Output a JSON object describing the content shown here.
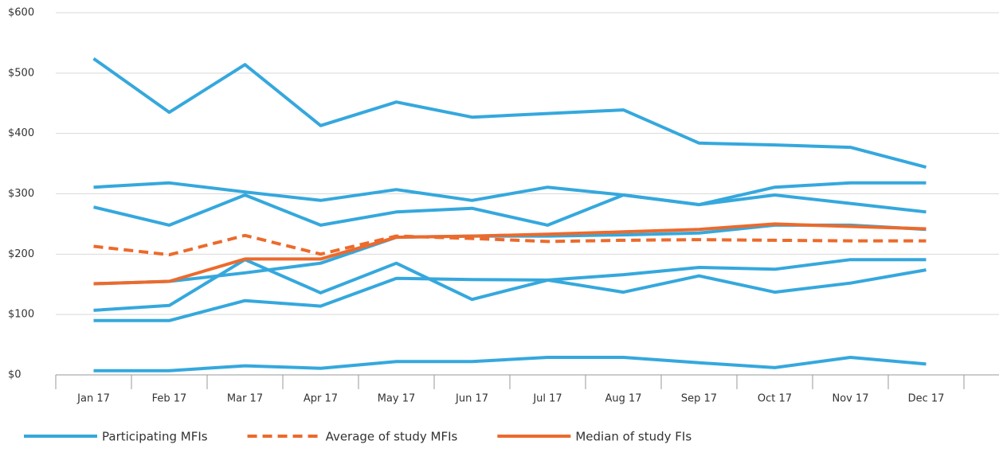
{
  "chart_data": {
    "type": "line",
    "categories": [
      "Jan 17",
      "Feb 17",
      "Mar 17",
      "Apr 17",
      "May 17",
      "Jun 17",
      "Jul 17",
      "Aug 17",
      "Sep 17",
      "Oct 17",
      "Nov 17",
      "Dec 17"
    ],
    "ylim": [
      0,
      600
    ],
    "yticks": [
      {
        "value": 0,
        "label": "$0"
      },
      {
        "value": 100,
        "label": "$100"
      },
      {
        "value": 200,
        "label": "$200"
      },
      {
        "value": 300,
        "label": "$300"
      },
      {
        "value": 400,
        "label": "$400"
      },
      {
        "value": 500,
        "label": "$500"
      },
      {
        "value": 600,
        "label": "$600"
      }
    ],
    "grid": true,
    "legend": "bottom",
    "series": [
      {
        "name": "Participating MFIs",
        "color": "#35a8dd",
        "style": "solid",
        "values": [
          524,
          435,
          514,
          413,
          452,
          427,
          433,
          439,
          384,
          381,
          377,
          344
        ]
      },
      {
        "name": "Participating MFIs",
        "color": "#35a8dd",
        "style": "solid",
        "values": [
          311,
          318,
          303,
          289,
          307,
          289,
          311,
          298,
          282,
          311,
          318,
          318
        ]
      },
      {
        "name": "Participating MFIs",
        "color": "#35a8dd",
        "style": "solid",
        "values": [
          278,
          248,
          298,
          248,
          270,
          276,
          248,
          298,
          282,
          298,
          284,
          270
        ]
      },
      {
        "name": "Participating MFIs",
        "color": "#35a8dd",
        "style": "solid",
        "values": [
          151,
          155,
          169,
          185,
          228,
          230,
          230,
          232,
          235,
          248,
          248,
          241
        ]
      },
      {
        "name": "Participating MFIs",
        "color": "#35a8dd",
        "style": "solid",
        "values": [
          107,
          115,
          191,
          136,
          185,
          125,
          157,
          137,
          164,
          137,
          152,
          174
        ]
      },
      {
        "name": "Participating MFIs",
        "color": "#35a8dd",
        "style": "solid",
        "values": [
          90,
          90,
          123,
          114,
          160,
          158,
          157,
          166,
          178,
          175,
          191,
          191
        ]
      },
      {
        "name": "Participating MFIs",
        "color": "#35a8dd",
        "style": "solid",
        "values": [
          7,
          7,
          15,
          11,
          22,
          22,
          29,
          29,
          20,
          12,
          29,
          18
        ]
      },
      {
        "name": "Average of study MFIs",
        "color": "#ec6a2c",
        "style": "dashed",
        "values": [
          213,
          199,
          231,
          200,
          230,
          226,
          221,
          223,
          224,
          223,
          222,
          222
        ]
      },
      {
        "name": "Median of study FIs",
        "color": "#ec6a2c",
        "style": "solid",
        "values": [
          151,
          155,
          192,
          192,
          228,
          230,
          233,
          237,
          241,
          250,
          246,
          242
        ]
      }
    ]
  }
}
